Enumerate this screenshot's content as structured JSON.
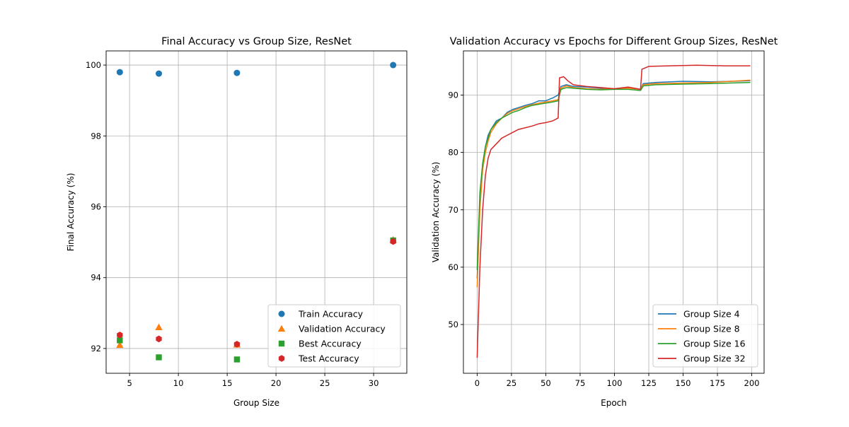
{
  "chart_data": [
    {
      "type": "scatter",
      "title": "Final Accuracy vs Group Size, ResNet",
      "xlabel": "Group Size",
      "ylabel": "Final Accuracy (%)",
      "xlim": [
        2.6,
        33.4
      ],
      "ylim": [
        91.3,
        100.4
      ],
      "xticks": [
        5,
        10,
        15,
        20,
        25,
        30
      ],
      "yticks": [
        92,
        94,
        96,
        98,
        100
      ],
      "grid": true,
      "legend_position": "lower right",
      "series": [
        {
          "name": "Train Accuracy",
          "marker": "circle",
          "color": "#1f77b4",
          "x": [
            4,
            8,
            16,
            32
          ],
          "y": [
            99.8,
            99.76,
            99.78,
            100.0
          ]
        },
        {
          "name": "Validation Accuracy",
          "marker": "triangle",
          "color": "#ff7f0e",
          "x": [
            4,
            8,
            16,
            32
          ],
          "y": [
            92.1,
            92.6,
            92.11,
            95.07
          ]
        },
        {
          "name": "Best Accuracy",
          "marker": "square",
          "color": "#2ca02c",
          "x": [
            4,
            8,
            16,
            32
          ],
          "y": [
            92.23,
            91.75,
            91.69,
            95.05
          ]
        },
        {
          "name": "Test Accuracy",
          "marker": "hexagon",
          "color": "#d62728",
          "x": [
            4,
            8,
            16,
            32
          ],
          "y": [
            92.38,
            92.27,
            92.12,
            95.02
          ]
        }
      ]
    },
    {
      "type": "line",
      "title": "Validation Accuracy vs Epochs for Different Group Sizes, ResNet",
      "xlabel": "Epoch",
      "ylabel": "Validation Accuracy (%)",
      "xlim": [
        -10,
        209
      ],
      "ylim": [
        41.5,
        97.7
      ],
      "xticks": [
        0,
        25,
        50,
        75,
        100,
        125,
        150,
        175,
        200
      ],
      "yticks": [
        50,
        60,
        70,
        80,
        90
      ],
      "grid": true,
      "legend_position": "lower right",
      "series": [
        {
          "name": "Group Size 4",
          "color": "#1f77b4",
          "x": [
            0,
            2,
            4,
            6,
            8,
            10,
            14,
            18,
            22,
            26,
            30,
            35,
            40,
            45,
            50,
            55,
            59,
            61,
            65,
            70,
            80,
            90,
            100,
            110,
            119,
            121,
            130,
            150,
            170,
            199
          ],
          "y": [
            58,
            72,
            78,
            81,
            83,
            84,
            85.5,
            86,
            87,
            87.5,
            87.8,
            88.2,
            88.5,
            89,
            89,
            89.5,
            90,
            91.5,
            91.8,
            91.5,
            91.4,
            91.2,
            91,
            91.3,
            91,
            92,
            92.2,
            92.4,
            92.3,
            92.5
          ]
        },
        {
          "name": "Group Size 8",
          "color": "#ff7f0e",
          "x": [
            0,
            2,
            4,
            6,
            8,
            10,
            14,
            18,
            22,
            26,
            30,
            35,
            40,
            45,
            50,
            55,
            59,
            61,
            65,
            70,
            80,
            90,
            100,
            110,
            119,
            121,
            130,
            150,
            170,
            199
          ],
          "y": [
            56.5,
            70,
            77,
            80,
            82,
            83.5,
            85,
            86,
            86.8,
            87.3,
            87.6,
            88,
            88.3,
            88.6,
            88.8,
            89,
            89.2,
            91.2,
            91.6,
            91.3,
            91.1,
            91,
            91.1,
            91.2,
            91,
            91.8,
            92,
            92.1,
            92.2,
            92.6
          ]
        },
        {
          "name": "Group Size 16",
          "color": "#2ca02c",
          "x": [
            0,
            2,
            4,
            6,
            8,
            10,
            14,
            18,
            22,
            26,
            30,
            35,
            40,
            45,
            50,
            55,
            59,
            61,
            65,
            70,
            80,
            90,
            100,
            110,
            119,
            121,
            130,
            150,
            170,
            199
          ],
          "y": [
            59.5,
            73,
            78,
            81,
            82.5,
            84,
            85.2,
            86,
            86.5,
            87,
            87.3,
            87.8,
            88.2,
            88.4,
            88.6,
            88.8,
            89,
            91,
            91.3,
            91.2,
            91,
            90.9,
            91,
            91,
            90.8,
            91.6,
            91.8,
            91.9,
            92,
            92.2
          ]
        },
        {
          "name": "Group Size 32",
          "color": "#d62728",
          "x": [
            0,
            2,
            4,
            6,
            8,
            10,
            14,
            18,
            22,
            26,
            30,
            35,
            40,
            45,
            50,
            55,
            59,
            60,
            63,
            66,
            70,
            80,
            90,
            100,
            110,
            119,
            120,
            125,
            140,
            160,
            180,
            199
          ],
          "y": [
            44.2,
            60,
            70,
            76,
            79,
            80.5,
            81.5,
            82.5,
            83,
            83.5,
            84,
            84.3,
            84.6,
            85,
            85.2,
            85.5,
            86,
            93,
            93.2,
            92.5,
            91.8,
            91.5,
            91.3,
            91.1,
            91.4,
            91,
            94.5,
            95,
            95.1,
            95.2,
            95.1,
            95.1
          ]
        }
      ]
    }
  ]
}
